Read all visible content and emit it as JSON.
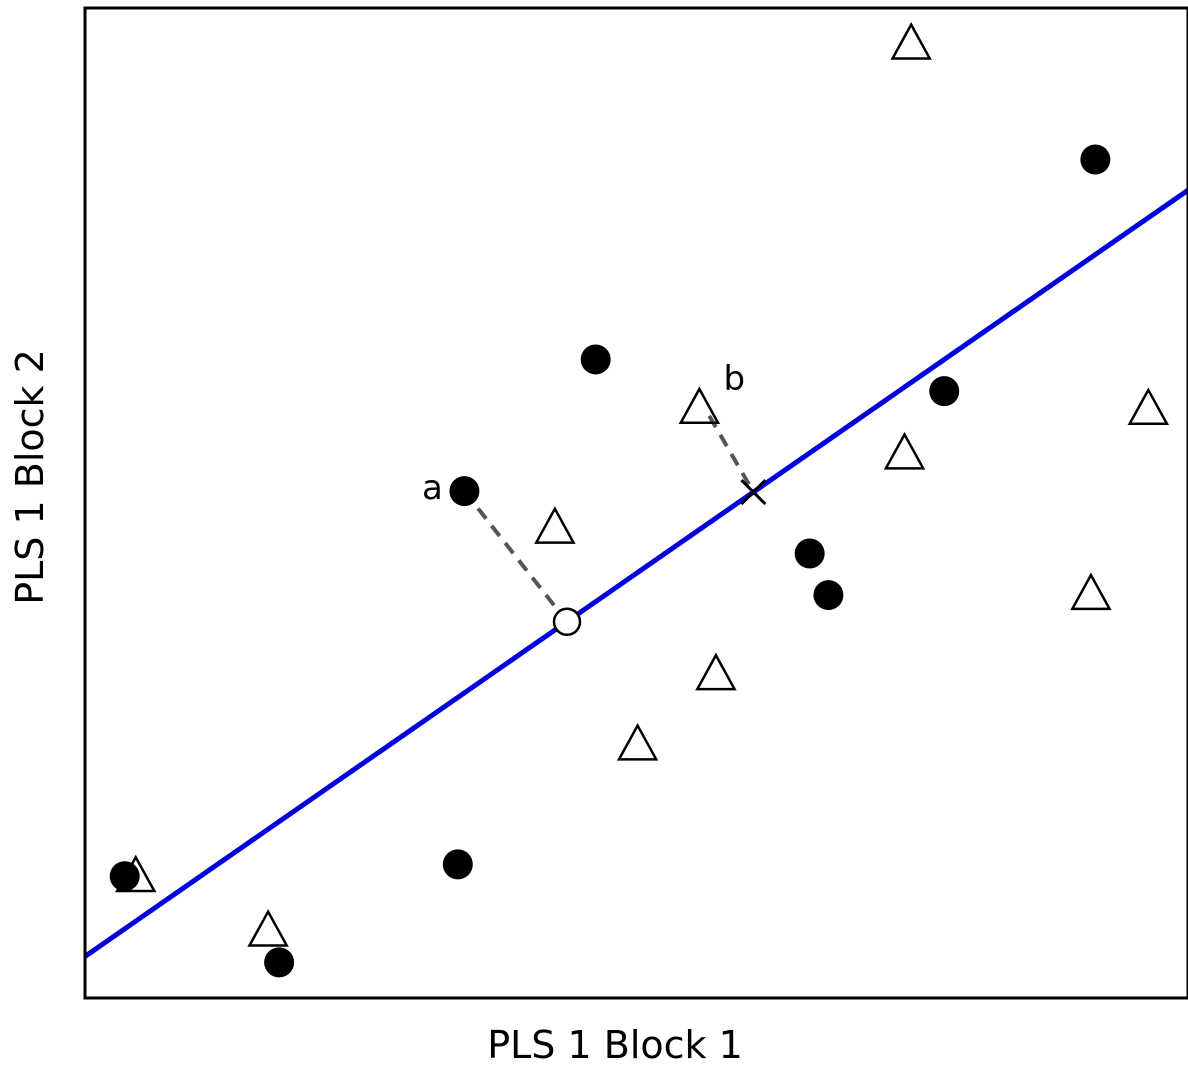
{
  "chart_data": {
    "type": "scatter",
    "xlabel": "PLS 1 Block 1",
    "ylabel": "PLS 1 Block 2",
    "xlim": [
      0,
      100
    ],
    "ylim": [
      0,
      100
    ],
    "axis_ticks": false,
    "grid": false,
    "marker_colors": {
      "filled": "#000000",
      "open": "#ffffff",
      "edge": "#000000"
    },
    "series": [
      {
        "marker": "filled-circle",
        "values": [
          {
            "x": 3.6,
            "y": 12.3
          },
          {
            "x": 17.6,
            "y": 3.6
          },
          {
            "x": 33.8,
            "y": 13.5
          },
          {
            "x": 34.4,
            "y": 51.2
          },
          {
            "x": 46.3,
            "y": 64.5
          },
          {
            "x": 65.7,
            "y": 44.9
          },
          {
            "x": 67.4,
            "y": 40.7
          },
          {
            "x": 77.9,
            "y": 61.3
          },
          {
            "x": 91.6,
            "y": 84.7
          }
        ]
      },
      {
        "marker": "open-triangle",
        "values": [
          {
            "x": 4.6,
            "y": 12.3
          },
          {
            "x": 16.6,
            "y": 6.8
          },
          {
            "x": 42.6,
            "y": 47.5
          },
          {
            "x": 50.1,
            "y": 25.6
          },
          {
            "x": 57.2,
            "y": 32.7
          },
          {
            "x": 55.7,
            "y": 59.6
          },
          {
            "x": 74.3,
            "y": 55.0
          },
          {
            "x": 74.9,
            "y": 96.4
          },
          {
            "x": 91.2,
            "y": 40.8
          },
          {
            "x": 96.4,
            "y": 59.5
          }
        ]
      }
    ],
    "regression_line": {
      "color": "#0000dd",
      "x": [
        0,
        100
      ],
      "y": [
        4.2,
        81.6
      ]
    },
    "projections": [
      {
        "label": "a",
        "from": {
          "x": 34.4,
          "y": 51.2
        },
        "to": {
          "x": 43.7,
          "y": 38.0
        },
        "to_marker": "open-circle"
      },
      {
        "label": "b",
        "from": {
          "x": 56.6,
          "y": 58.8
        },
        "to": {
          "x": 60.6,
          "y": 51.1
        },
        "to_marker": "x-cross"
      }
    ],
    "projection_line_color": "#555555"
  }
}
